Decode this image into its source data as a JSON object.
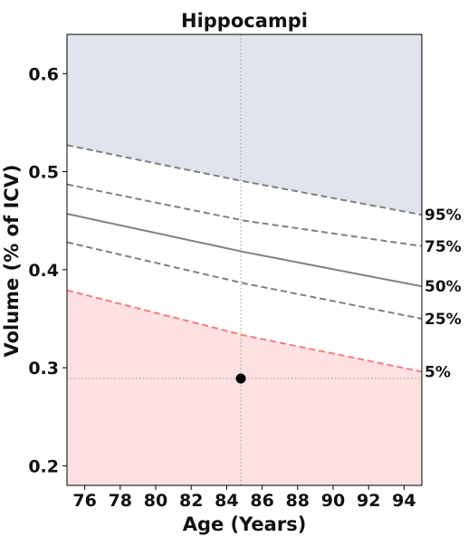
{
  "chart_data": {
    "type": "line",
    "title": "Hippocampi",
    "xlabel": "Age (Years)",
    "ylabel": "Volume (% of ICV)",
    "xlim": [
      75,
      95
    ],
    "ylim": [
      0.18,
      0.64
    ],
    "xticks": [
      76,
      78,
      80,
      82,
      84,
      86,
      88,
      90,
      92,
      94
    ],
    "yticks": [
      0.2,
      0.3,
      0.4,
      0.5,
      0.6
    ],
    "grid": false,
    "series": [
      {
        "name": "95%",
        "style": "dashed",
        "color": "#808080",
        "x": [
          75,
          85,
          95
        ],
        "y": [
          0.527,
          0.49,
          0.456
        ]
      },
      {
        "name": "75%",
        "style": "dashed",
        "color": "#808080",
        "x": [
          75,
          85,
          95
        ],
        "y": [
          0.487,
          0.45,
          0.424
        ]
      },
      {
        "name": "50%",
        "style": "solid",
        "color": "#808080",
        "x": [
          75,
          85,
          95
        ],
        "y": [
          0.457,
          0.418,
          0.383
        ]
      },
      {
        "name": "25%",
        "style": "dashed",
        "color": "#808080",
        "x": [
          75,
          85,
          95
        ],
        "y": [
          0.428,
          0.386,
          0.35
        ]
      },
      {
        "name": "5%",
        "style": "dashed",
        "color": "#f08080",
        "x": [
          75,
          85,
          95
        ],
        "y": [
          0.379,
          0.333,
          0.296
        ]
      }
    ],
    "upper_region_color": "#dfe4ed",
    "lower_region_color": "#fde0e1",
    "subject_point": {
      "x": 84.8,
      "y": 0.289
    },
    "reference_lines": {
      "vertical_x": 84.8,
      "horizontal_y": 0.289
    }
  }
}
